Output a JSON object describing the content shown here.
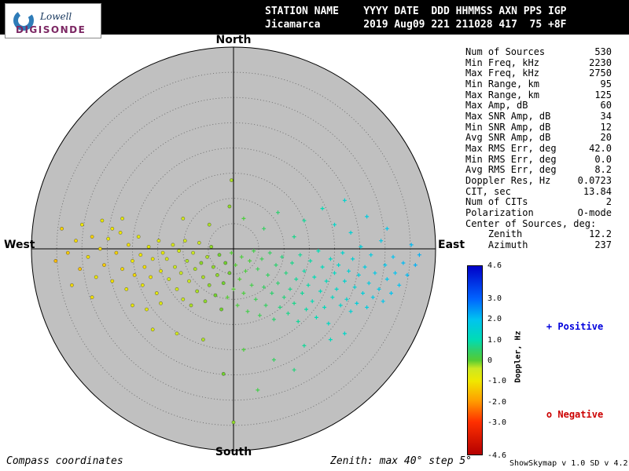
{
  "header": {
    "line1": "STATION NAME    YYYY DATE  DDD HHMMSS AXN PPS IGP",
    "line2": "Jicamarca       2019 Aug09 221 211028 417  75 +8F"
  },
  "logo": {
    "line1": "Lowell",
    "line2": "DIGISONDE",
    "crescent_color": "#2e7cb8"
  },
  "compass": {
    "north": "North",
    "south": "South",
    "west": "West",
    "east": "East"
  },
  "plot": {
    "fill": "#c0c0c0",
    "ring_color": "#6a6a6a",
    "axis_color": "#000000"
  },
  "stats": [
    {
      "label": "Num of Sources",
      "value": "530"
    },
    {
      "label": "Min Freq, kHz",
      "value": "2230"
    },
    {
      "label": "Max Freq, kHz",
      "value": "2750"
    },
    {
      "label": "Min Range, km",
      "value": "95"
    },
    {
      "label": "Max Range, km",
      "value": "125"
    },
    {
      "label": "Max Amp, dB",
      "value": "60"
    },
    {
      "label": "Max SNR Amp, dB",
      "value": "34"
    },
    {
      "label": "Min SNR Amp, dB",
      "value": "12"
    },
    {
      "label": "Avg SNR Amp, dB",
      "value": "20"
    },
    {
      "label": "Max RMS Err, deg",
      "value": "42.0"
    },
    {
      "label": "Min RMS Err, deg",
      "value": "0.0"
    },
    {
      "label": "Avg RMS Err, deg",
      "value": "8.2"
    },
    {
      "label": "Doppler Res, Hz",
      "value": "0.0723"
    },
    {
      "label": "CIT, sec",
      "value": "13.84"
    },
    {
      "label": "Num of CITs",
      "value": "2"
    },
    {
      "label": "Polarization",
      "value": "O-mode"
    },
    {
      "label": "Center of Sources, deg:",
      "value": ""
    },
    {
      "label": "    Zenith",
      "value": "12.2"
    },
    {
      "label": "    Azimuth",
      "value": "237"
    }
  ],
  "colorbar": {
    "title": "Doppler, Hz",
    "min": -4.6,
    "max": 4.6,
    "ticks": [
      {
        "v": 4.6,
        "label": "4.6"
      },
      {
        "v": 3.0,
        "label": "3.0"
      },
      {
        "v": 2.0,
        "label": "2.0"
      },
      {
        "v": 1.0,
        "label": "1.0"
      },
      {
        "v": 0.0,
        "label": "0"
      },
      {
        "v": -1.0,
        "label": "-1.0"
      },
      {
        "v": -2.0,
        "label": "-2.0"
      },
      {
        "v": -3.0,
        "label": "-3.0"
      },
      {
        "v": -4.6,
        "label": "-4.6"
      }
    ],
    "stops": [
      {
        "v": -4.6,
        "c": "#b40000"
      },
      {
        "v": -3.0,
        "c": "#ff3000"
      },
      {
        "v": -2.0,
        "c": "#ff9c00"
      },
      {
        "v": -1.0,
        "c": "#f0e800"
      },
      {
        "v": -0.4,
        "c": "#cce822"
      },
      {
        "v": 0.0,
        "c": "#55cc33"
      },
      {
        "v": 0.5,
        "c": "#2ed06e"
      },
      {
        "v": 1.0,
        "c": "#00dcb4"
      },
      {
        "v": 2.0,
        "c": "#00c3f0"
      },
      {
        "v": 3.0,
        "c": "#0064ff"
      },
      {
        "v": 4.6,
        "c": "#0000c8"
      }
    ]
  },
  "legend": {
    "positive": {
      "marker": "+",
      "label": "Positive",
      "color": "#0000dd"
    },
    "negative": {
      "marker": "o",
      "label": "Negative",
      "color": "#cc0000"
    }
  },
  "footer": {
    "left": "Compass coordinates",
    "center": "Zenith: max 40°  step 5°",
    "right": "ShowSkymap v 1.0  SD v 4.2"
  },
  "chart_data": {
    "type": "scatter",
    "projection": "polar_compass_skymap",
    "compass_labels": [
      "North",
      "East",
      "South",
      "West"
    ],
    "zenith_max_deg": 40,
    "zenith_step_deg": 5,
    "color_axis": {
      "label": "Doppler, Hz",
      "min": -4.6,
      "max": 4.6
    },
    "marker_legend": {
      "positive": "+",
      "negative": "o"
    },
    "point_format": [
      "x_east_fraction_of_40deg",
      "y_north_fraction_of_40deg",
      "doppler_hz"
    ],
    "points": [
      [
        -0.88,
        -0.06,
        -1.6
      ],
      [
        -0.85,
        0.1,
        -1.3
      ],
      [
        -0.82,
        -0.02,
        -1.4
      ],
      [
        -0.8,
        -0.18,
        -1.2
      ],
      [
        -0.78,
        0.04,
        -1.2
      ],
      [
        -0.76,
        -0.1,
        -1.5
      ],
      [
        -0.75,
        0.12,
        -1.0
      ],
      [
        -0.72,
        -0.04,
        -1.1
      ],
      [
        -0.7,
        0.06,
        -1.3
      ],
      [
        -0.7,
        -0.24,
        -1.1
      ],
      [
        -0.68,
        -0.14,
        -1.0
      ],
      [
        -0.66,
        0.0,
        -1.2
      ],
      [
        -0.65,
        0.14,
        -0.9
      ],
      [
        -0.64,
        -0.08,
        -1.4
      ],
      [
        -0.62,
        0.05,
        -0.9
      ],
      [
        -0.6,
        -0.16,
        -1.1
      ],
      [
        -0.6,
        0.1,
        -1.0
      ],
      [
        -0.58,
        -0.02,
        -1.3
      ],
      [
        -0.56,
        0.08,
        -1.0
      ],
      [
        -0.55,
        -0.1,
        -1.2
      ],
      [
        -0.55,
        0.15,
        -0.8
      ],
      [
        -0.53,
        -0.2,
        -0.9
      ],
      [
        -0.52,
        0.02,
        -1.1
      ],
      [
        -0.5,
        -0.06,
        -1.0
      ],
      [
        -0.5,
        -0.28,
        -0.9
      ],
      [
        -0.49,
        -0.13,
        -1.2
      ],
      [
        -0.47,
        0.06,
        -0.8
      ],
      [
        -0.46,
        -0.03,
        -1.0
      ],
      [
        -0.45,
        -0.18,
        -0.9
      ],
      [
        -0.44,
        -0.09,
        -1.1
      ],
      [
        -0.43,
        -0.3,
        -0.8
      ],
      [
        -0.42,
        0.01,
        -0.8
      ],
      [
        -0.41,
        -0.14,
        -1.0
      ],
      [
        -0.4,
        -0.05,
        -0.9
      ],
      [
        -0.38,
        -0.22,
        -0.8
      ],
      [
        -0.37,
        0.04,
        -0.7
      ],
      [
        -0.36,
        -0.11,
        -0.9
      ],
      [
        -0.36,
        -0.27,
        -0.7
      ],
      [
        -0.35,
        -0.02,
        -0.8
      ],
      [
        -0.33,
        -0.05,
        -0.6
      ],
      [
        -0.32,
        -0.15,
        -0.5
      ],
      [
        -0.3,
        0.02,
        -0.6
      ],
      [
        -0.29,
        -0.09,
        -0.4
      ],
      [
        -0.28,
        -0.2,
        -0.5
      ],
      [
        -0.27,
        -0.01,
        -0.5
      ],
      [
        -0.26,
        -0.12,
        -0.4
      ],
      [
        -0.25,
        -0.25,
        -0.4
      ],
      [
        -0.24,
        0.04,
        -0.5
      ],
      [
        -0.23,
        -0.06,
        -0.3
      ],
      [
        -0.22,
        -0.16,
        -0.4
      ],
      [
        -0.21,
        -0.28,
        -0.3
      ],
      [
        -0.2,
        -0.02,
        -0.4
      ],
      [
        -0.19,
        -0.1,
        -0.3
      ],
      [
        -0.18,
        -0.21,
        -0.3
      ],
      [
        -0.17,
        0.03,
        -0.4
      ],
      [
        -0.16,
        -0.07,
        -0.2
      ],
      [
        -0.15,
        -0.14,
        -0.3
      ],
      [
        -0.14,
        -0.26,
        -0.2
      ],
      [
        -0.13,
        -0.04,
        -0.3
      ],
      [
        -0.12,
        -0.18,
        -0.2
      ],
      [
        -0.11,
        0.01,
        -0.2
      ],
      [
        -0.1,
        -0.09,
        -0.2
      ],
      [
        -0.09,
        -0.23,
        -0.1
      ],
      [
        -0.08,
        -0.13,
        -0.2
      ],
      [
        -0.07,
        -0.03,
        -0.1
      ],
      [
        -0.06,
        -0.3,
        -0.1
      ],
      [
        -0.05,
        -0.17,
        -0.1
      ],
      [
        -0.04,
        -0.07,
        -0.1
      ],
      [
        -0.03,
        -0.24,
        0.0
      ],
      [
        -0.02,
        -0.12,
        -0.1
      ],
      [
        -0.01,
        -0.02,
        0.0
      ],
      [
        0.0,
        -0.2,
        0.0
      ],
      [
        0.01,
        -0.08,
        0.0
      ],
      [
        0.02,
        -0.28,
        0.1
      ],
      [
        0.03,
        -0.15,
        0.0
      ],
      [
        0.04,
        -0.04,
        0.1
      ],
      [
        0.05,
        -0.22,
        0.1
      ],
      [
        0.06,
        -0.11,
        0.1
      ],
      [
        0.07,
        -0.31,
        0.2
      ],
      [
        0.08,
        -0.06,
        0.1
      ],
      [
        0.09,
        -0.18,
        0.2
      ],
      [
        0.1,
        -0.01,
        0.2
      ],
      [
        0.11,
        -0.25,
        0.3
      ],
      [
        0.12,
        -0.1,
        0.3
      ],
      [
        0.13,
        -0.33,
        0.3
      ],
      [
        0.14,
        -0.05,
        0.3
      ],
      [
        0.15,
        -0.19,
        0.4
      ],
      [
        0.16,
        -0.28,
        0.4
      ],
      [
        0.17,
        -0.13,
        0.4
      ],
      [
        0.18,
        -0.02,
        0.4
      ],
      [
        0.19,
        -0.22,
        0.5
      ],
      [
        0.2,
        -0.35,
        0.5
      ],
      [
        0.21,
        -0.08,
        0.5
      ],
      [
        0.22,
        -0.17,
        0.5
      ],
      [
        0.23,
        -0.29,
        0.6
      ],
      [
        0.24,
        -0.04,
        0.6
      ],
      [
        0.25,
        -0.24,
        0.6
      ],
      [
        0.26,
        -0.12,
        0.6
      ],
      [
        0.27,
        -0.32,
        0.7
      ],
      [
        0.28,
        -0.2,
        0.7
      ],
      [
        0.29,
        -0.07,
        0.7
      ],
      [
        0.3,
        -0.27,
        0.7
      ],
      [
        0.31,
        -0.15,
        0.8
      ],
      [
        0.32,
        -0.36,
        0.8
      ],
      [
        0.33,
        -0.03,
        0.8
      ],
      [
        0.34,
        -0.22,
        0.8
      ],
      [
        0.35,
        -0.11,
        0.9
      ],
      [
        0.36,
        -0.3,
        0.9
      ],
      [
        0.37,
        -0.18,
        0.9
      ],
      [
        0.38,
        -0.06,
        0.9
      ],
      [
        0.39,
        -0.26,
        1.0
      ],
      [
        0.4,
        -0.14,
        1.0
      ],
      [
        0.41,
        -0.34,
        1.0
      ],
      [
        0.42,
        -0.01,
        1.0
      ],
      [
        0.43,
        -0.21,
        1.1
      ],
      [
        0.44,
        -0.09,
        1.1
      ],
      [
        0.45,
        -0.29,
        1.1
      ],
      [
        0.46,
        -0.16,
        1.1
      ],
      [
        0.47,
        -0.37,
        1.2
      ],
      [
        0.48,
        -0.05,
        1.2
      ],
      [
        0.49,
        -0.24,
        1.2
      ],
      [
        0.5,
        -0.12,
        1.2
      ],
      [
        0.51,
        -0.2,
        1.3
      ],
      [
        0.52,
        -0.08,
        1.3
      ],
      [
        0.53,
        -0.28,
        1.3
      ],
      [
        0.54,
        -0.02,
        1.4
      ],
      [
        0.55,
        -0.16,
        1.4
      ],
      [
        0.56,
        -0.25,
        1.4
      ],
      [
        0.57,
        -0.11,
        1.5
      ],
      [
        0.58,
        -0.31,
        1.5
      ],
      [
        0.59,
        -0.05,
        1.5
      ],
      [
        0.6,
        -0.19,
        1.5
      ],
      [
        0.61,
        -0.27,
        1.6
      ],
      [
        0.62,
        -0.13,
        1.6
      ],
      [
        0.63,
        0.01,
        1.6
      ],
      [
        0.64,
        -0.22,
        1.6
      ],
      [
        0.65,
        -0.09,
        1.7
      ],
      [
        0.66,
        -0.29,
        1.7
      ],
      [
        0.67,
        -0.17,
        1.7
      ],
      [
        0.68,
        -0.03,
        1.7
      ],
      [
        0.69,
        -0.24,
        1.8
      ],
      [
        0.7,
        -0.12,
        1.8
      ],
      [
        0.72,
        -0.2,
        1.8
      ],
      [
        0.73,
        0.04,
        1.8
      ],
      [
        0.74,
        -0.26,
        1.9
      ],
      [
        0.75,
        -0.08,
        1.9
      ],
      [
        0.76,
        -0.15,
        1.9
      ],
      [
        0.78,
        -0.22,
        2.0
      ],
      [
        0.79,
        -0.04,
        2.0
      ],
      [
        0.8,
        -0.12,
        2.0
      ],
      [
        0.82,
        -0.18,
        2.0
      ],
      [
        0.84,
        -0.07,
        2.1
      ],
      [
        0.86,
        -0.13,
        2.1
      ],
      [
        0.88,
        0.02,
        2.1
      ],
      [
        0.9,
        -0.08,
        2.2
      ],
      [
        0.92,
        -0.03,
        2.2
      ],
      [
        -0.01,
        0.34,
        -0.3
      ],
      [
        -0.02,
        0.21,
        -0.2
      ],
      [
        0.05,
        0.15,
        0.1
      ],
      [
        0.15,
        0.1,
        0.4
      ],
      [
        0.22,
        0.18,
        0.5
      ],
      [
        0.3,
        0.06,
        0.7
      ],
      [
        0.35,
        0.14,
        0.8
      ],
      [
        0.5,
        0.12,
        1.3
      ],
      [
        0.58,
        0.08,
        1.5
      ],
      [
        0.66,
        0.16,
        1.7
      ],
      [
        0.76,
        0.1,
        1.9
      ],
      [
        -0.12,
        0.12,
        -0.3
      ],
      [
        -0.25,
        0.15,
        -0.5
      ],
      [
        0.44,
        0.2,
        1.0
      ],
      [
        0.55,
        0.24,
        1.4
      ],
      [
        -0.4,
        -0.4,
        -0.7
      ],
      [
        -0.28,
        -0.42,
        -0.5
      ],
      [
        -0.15,
        -0.45,
        -0.3
      ],
      [
        -0.05,
        -0.62,
        -0.1
      ],
      [
        0.0,
        -0.86,
        -0.2
      ],
      [
        0.05,
        -0.5,
        0.1
      ],
      [
        0.12,
        -0.7,
        0.2
      ],
      [
        0.2,
        -0.55,
        0.4
      ],
      [
        0.3,
        -0.6,
        0.6
      ],
      [
        0.35,
        -0.48,
        0.8
      ],
      [
        0.48,
        -0.45,
        1.1
      ],
      [
        0.55,
        -0.42,
        1.3
      ]
    ]
  }
}
